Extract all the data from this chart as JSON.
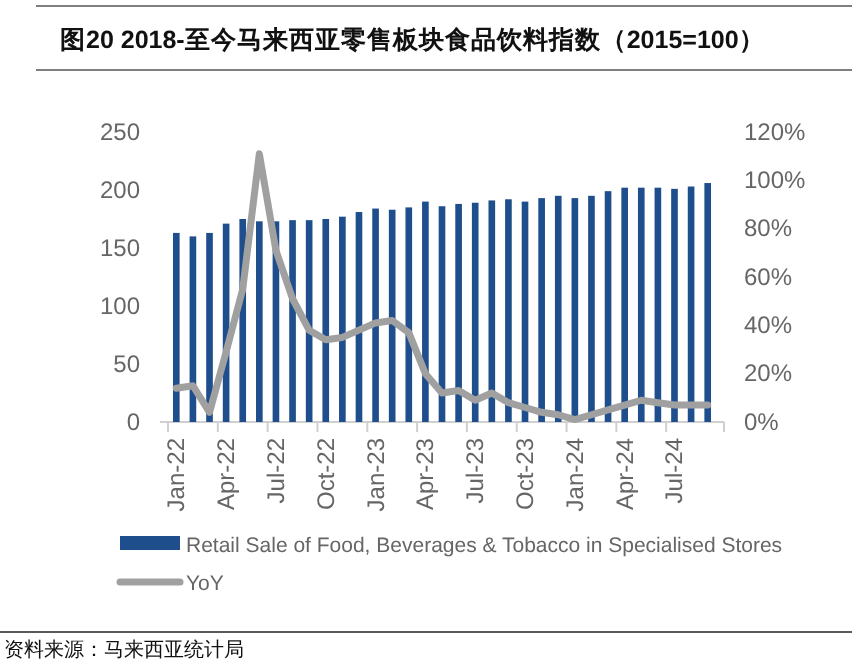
{
  "chart_data": {
    "type": "bar",
    "title": "图20 2018-至今马来西亚零售板块食品饮料指数（2015=100）",
    "annotations": [
      "资料来源：马来西亚统计局"
    ],
    "categories": [
      "Jan-22",
      null,
      null,
      "Apr-22",
      null,
      null,
      "Jul-22",
      null,
      null,
      "Oct-22",
      null,
      null,
      "Jan-23",
      null,
      null,
      "Apr-23",
      null,
      null,
      "Jul-23",
      null,
      null,
      "Oct-23",
      null,
      null,
      "Jan-24",
      null,
      null,
      "Apr-24",
      null,
      null,
      "Jul-24",
      null,
      null
    ],
    "series": [
      {
        "name": "Retail Sale of Food, Beverages & Tobacco in Specialised Stores",
        "color": "#1f4e8c",
        "values": [
          163,
          160,
          163,
          171,
          175,
          173,
          173,
          174,
          174,
          175,
          177,
          181,
          184,
          183,
          185,
          190,
          186,
          188,
          189,
          191,
          192,
          190,
          193,
          195,
          193,
          195,
          199,
          202,
          202,
          202,
          201,
          203,
          206
        ]
      },
      {
        "name": "YoY",
        "type": "line",
        "axis": "y2",
        "color": "#a0a0a0",
        "values": [
          14,
          15,
          4,
          29,
          55,
          111,
          71,
          51,
          38,
          34,
          35,
          38,
          41,
          42,
          37,
          20,
          12,
          13,
          9,
          12,
          8,
          6,
          4,
          3,
          1,
          3,
          5,
          7,
          9,
          8,
          7,
          7,
          7
        ]
      }
    ],
    "ylim": [
      0,
      250
    ],
    "yticks": [
      0,
      50,
      100,
      150,
      200,
      250
    ],
    "y2lim": [
      0,
      120
    ],
    "y2ticks": [
      {
        "value": 0,
        "label": "0%"
      },
      {
        "value": 20,
        "label": "20%"
      },
      {
        "value": 40,
        "label": "40%"
      },
      {
        "value": 60,
        "label": "60%"
      },
      {
        "value": 80,
        "label": "80%"
      },
      {
        "value": 100,
        "label": "100%"
      },
      {
        "value": 120,
        "label": "120%"
      }
    ],
    "legend": "bottom",
    "grid": false,
    "marker": "none",
    "line_style": "solid"
  }
}
